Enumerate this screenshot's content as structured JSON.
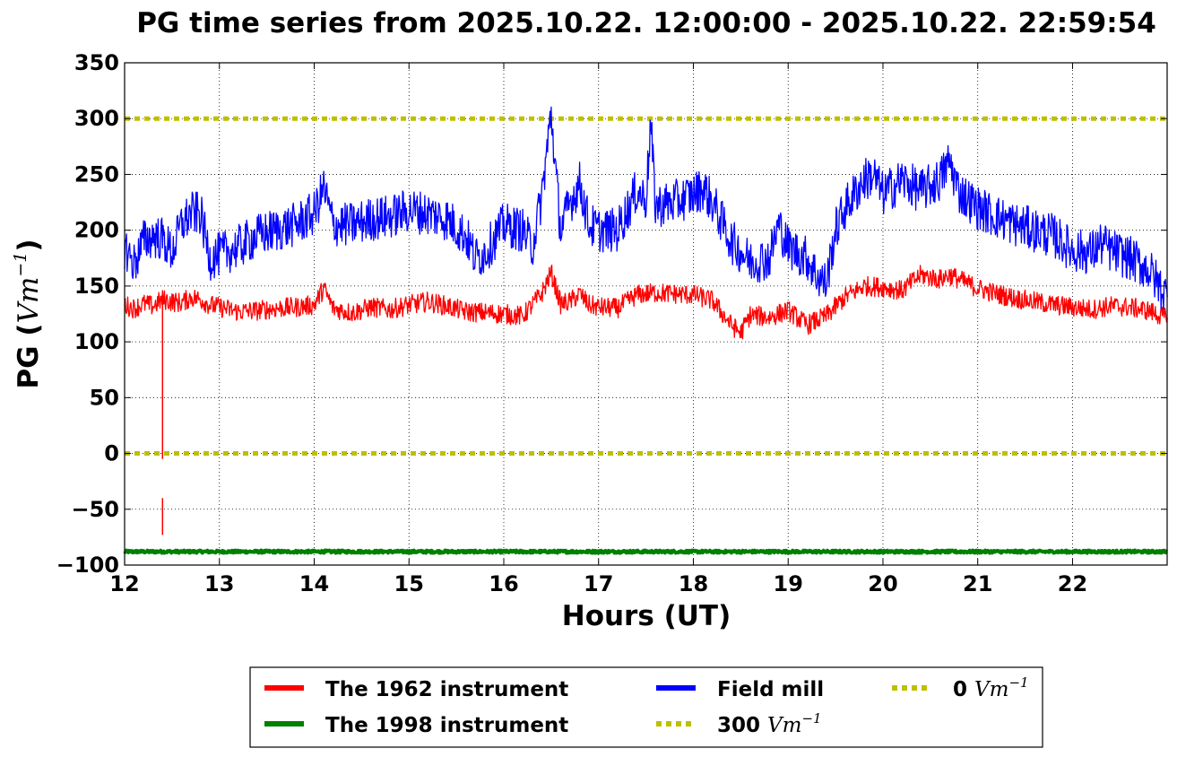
{
  "chart_data": {
    "type": "line",
    "title": "PG time series from 2025.10.22. 12:00:00 - 2025.10.22. 22:59:54",
    "xlabel": "Hours (UT)",
    "ylabel_prefix": "PG (",
    "ylabel_unit": "Vm",
    "ylabel_exp": "−1",
    "ylabel_suffix": ")",
    "xlim": [
      12,
      22.998
    ],
    "ylim": [
      -100,
      350
    ],
    "xticks": [
      12,
      13,
      14,
      15,
      16,
      17,
      18,
      19,
      20,
      21,
      22
    ],
    "yticks": [
      -100,
      -50,
      0,
      50,
      100,
      150,
      200,
      250,
      300,
      350
    ],
    "ytick_labels": [
      "−100",
      "−50",
      "0",
      "50",
      "100",
      "150",
      "200",
      "250",
      "300",
      "350"
    ],
    "grid": true,
    "legend_placement": "below",
    "hlines": [
      {
        "name": "300",
        "value": 300,
        "color": "#bfbf00",
        "style": "dotted"
      },
      {
        "name": "0",
        "value": 0,
        "color": "#bfbf00",
        "style": "dotted"
      }
    ],
    "series": [
      {
        "name": "The 1962 instrument",
        "color": "#ff0000",
        "x": [
          12.0,
          12.1,
          12.2,
          12.3,
          12.4,
          12.5,
          12.6,
          12.7,
          12.8,
          12.9,
          13.0,
          13.2,
          13.4,
          13.6,
          13.8,
          14.0,
          14.1,
          14.2,
          14.4,
          14.6,
          14.8,
          15.0,
          15.2,
          15.4,
          15.6,
          15.8,
          16.0,
          16.2,
          16.3,
          16.4,
          16.5,
          16.6,
          16.7,
          16.8,
          16.9,
          17.0,
          17.2,
          17.4,
          17.6,
          17.8,
          18.0,
          18.2,
          18.4,
          18.5,
          18.6,
          18.8,
          19.0,
          19.2,
          19.4,
          19.6,
          19.8,
          20.0,
          20.2,
          20.4,
          20.6,
          20.7,
          20.8,
          21.0,
          21.2,
          21.4,
          21.6,
          21.8,
          22.0,
          22.2,
          22.4,
          22.6,
          22.8,
          23.0
        ],
        "values": [
          133,
          130,
          134,
          132,
          138,
          136,
          135,
          140,
          138,
          133,
          131,
          127,
          128,
          130,
          131,
          133,
          148,
          130,
          126,
          131,
          129,
          133,
          136,
          132,
          127,
          126,
          125,
          123,
          133,
          143,
          162,
          134,
          136,
          143,
          133,
          131,
          130,
          142,
          144,
          143,
          142,
          137,
          115,
          108,
          124,
          122,
          128,
          115,
          123,
          140,
          150,
          149,
          146,
          160,
          156,
          160,
          156,
          148,
          143,
          139,
          136,
          133,
          131,
          129,
          132,
          131,
          128,
          121
        ],
        "segments": [
          {
            "x": [
              12.4,
              12.4
            ],
            "values": [
              138,
              -5
            ]
          },
          {
            "x": [
              12.4,
              12.4
            ],
            "values": [
              -40,
              -73
            ]
          }
        ]
      },
      {
        "name": "The 1998 instrument",
        "color": "#008000",
        "x": [
          12.0,
          23.0
        ],
        "values": [
          -88,
          -88
        ]
      },
      {
        "name": "Field mill",
        "color": "#0000ff",
        "x": [
          12.0,
          12.1,
          12.2,
          12.3,
          12.4,
          12.5,
          12.6,
          12.7,
          12.8,
          12.9,
          13.0,
          13.2,
          13.4,
          13.6,
          13.8,
          14.0,
          14.1,
          14.2,
          14.4,
          14.6,
          14.8,
          15.0,
          15.2,
          15.4,
          15.6,
          15.7,
          15.8,
          16.0,
          16.2,
          16.3,
          16.4,
          16.45,
          16.5,
          16.55,
          16.6,
          16.7,
          16.8,
          16.9,
          17.0,
          17.2,
          17.4,
          17.5,
          17.55,
          17.6,
          17.8,
          18.0,
          18.1,
          18.2,
          18.4,
          18.6,
          18.8,
          18.9,
          19.0,
          19.2,
          19.3,
          19.4,
          19.5,
          19.6,
          19.8,
          19.9,
          20.0,
          20.2,
          20.4,
          20.6,
          20.7,
          20.8,
          21.0,
          21.2,
          21.4,
          21.6,
          21.8,
          22.0,
          22.2,
          22.3,
          22.4,
          22.6,
          22.8,
          23.0
        ],
        "values": [
          185,
          170,
          190,
          195,
          192,
          180,
          205,
          215,
          215,
          175,
          178,
          185,
          195,
          200,
          205,
          215,
          238,
          205,
          205,
          210,
          212,
          218,
          215,
          210,
          195,
          175,
          180,
          205,
          200,
          185,
          230,
          268,
          305,
          250,
          200,
          225,
          242,
          205,
          200,
          200,
          235,
          228,
          295,
          222,
          225,
          232,
          238,
          225,
          190,
          172,
          175,
          205,
          185,
          175,
          160,
          152,
          200,
          220,
          245,
          250,
          232,
          245,
          235,
          245,
          262,
          235,
          220,
          212,
          205,
          200,
          195,
          182,
          180,
          188,
          182,
          175,
          165,
          140
        ]
      }
    ],
    "legend": [
      {
        "key": "The 1962 instrument",
        "label": "The 1962 instrument",
        "color": "#ff0000",
        "style": "solid"
      },
      {
        "key": "The 1998 instrument",
        "label": "The 1998 instrument",
        "color": "#008000",
        "style": "solid"
      },
      {
        "key": "Field mill",
        "label": "Field mill",
        "color": "#0000ff",
        "style": "solid"
      },
      {
        "key": "300",
        "label": "300",
        "unit": "Vm",
        "exp": "−1",
        "color": "#bfbf00",
        "style": "dotted"
      },
      {
        "key": "0",
        "label": "0",
        "unit": "Vm",
        "exp": "−1",
        "color": "#bfbf00",
        "style": "dotted"
      }
    ]
  }
}
